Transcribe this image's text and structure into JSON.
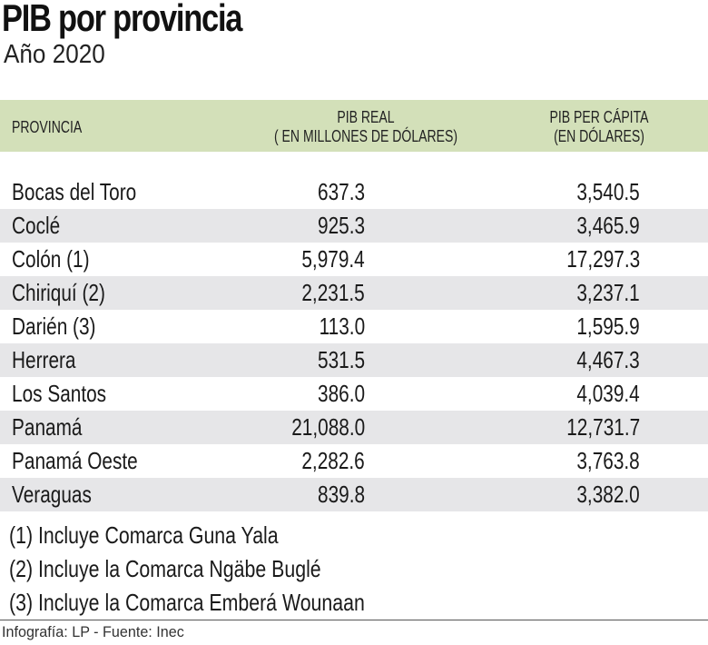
{
  "header": {
    "title": "PIB por provincia",
    "subtitle": "Año 2020"
  },
  "table": {
    "columns": {
      "provincia": "PROVINCIA",
      "pib_real_line1": "PIB REAL",
      "pib_real_line2": "( EN MILLONES DE DÓLARES)",
      "pib_capita_line1": "PIB PER CÁPITA",
      "pib_capita_line2": "(EN DÓLARES)"
    },
    "rows": [
      {
        "provincia": "Bocas del Toro",
        "pib_real": "637.3",
        "pib_capita": "3,540.5"
      },
      {
        "provincia": "Coclé",
        "pib_real": "925.3",
        "pib_capita": "3,465.9"
      },
      {
        "provincia": "Colón (1)",
        "pib_real": "5,979.4",
        "pib_capita": "17,297.3"
      },
      {
        "provincia": "Chiriquí (2)",
        "pib_real": "2,231.5",
        "pib_capita": "3,237.1"
      },
      {
        "provincia": "Darién (3)",
        "pib_real": "113.0",
        "pib_capita": "1,595.9"
      },
      {
        "provincia": "Herrera",
        "pib_real": "531.5",
        "pib_capita": "4,467.3"
      },
      {
        "provincia": "Los Santos",
        "pib_real": "386.0",
        "pib_capita": "4,039.4"
      },
      {
        "provincia": "Panamá",
        "pib_real": "21,088.0",
        "pib_capita": "12,731.7"
      },
      {
        "provincia": "Panamá Oeste",
        "pib_real": "2,282.6",
        "pib_capita": "3,763.8"
      },
      {
        "provincia": "Veraguas",
        "pib_real": "839.8",
        "pib_capita": "3,382.0"
      }
    ]
  },
  "notes": [
    "(1) Incluye Comarca Guna Yala",
    "(2) Incluye la Comarca Ngäbe Buglé",
    "(3)  Incluye la Comarca Emberá Wounaan"
  ],
  "credit": "Infografía: LP - Fuente: Inec",
  "colors": {
    "header_bg": "#d3e0b9",
    "stripe_bg": "#e6e6e8",
    "text": "#1a1a1a"
  },
  "chart_data": {
    "type": "table",
    "title": "PIB por provincia",
    "subtitle": "Año 2020",
    "columns": [
      "PROVINCIA",
      "PIB REAL ( EN MILLONES DE DÓLARES)",
      "PIB PER CÁPITA (EN DÓLARES)"
    ],
    "categories": [
      "Bocas del Toro",
      "Coclé",
      "Colón (1)",
      "Chiriquí (2)",
      "Darién (3)",
      "Herrera",
      "Los Santos",
      "Panamá",
      "Panamá Oeste",
      "Veraguas"
    ],
    "series": [
      {
        "name": "PIB real (millones de dólares)",
        "values": [
          637.3,
          925.3,
          5979.4,
          2231.5,
          113.0,
          531.5,
          386.0,
          21088.0,
          2282.6,
          839.8
        ]
      },
      {
        "name": "PIB per cápita (dólares)",
        "values": [
          3540.5,
          3465.9,
          17297.3,
          3237.1,
          1595.9,
          4467.3,
          4039.4,
          12731.7,
          3763.8,
          3382.0
        ]
      }
    ],
    "annotations": [
      "(1) Incluye Comarca Guna Yala",
      "(2) Incluye la Comarca Ngäbe Buglé",
      "(3)  Incluye la Comarca Emberá Wounaan"
    ],
    "source": "Infografía: LP - Fuente: Inec"
  }
}
